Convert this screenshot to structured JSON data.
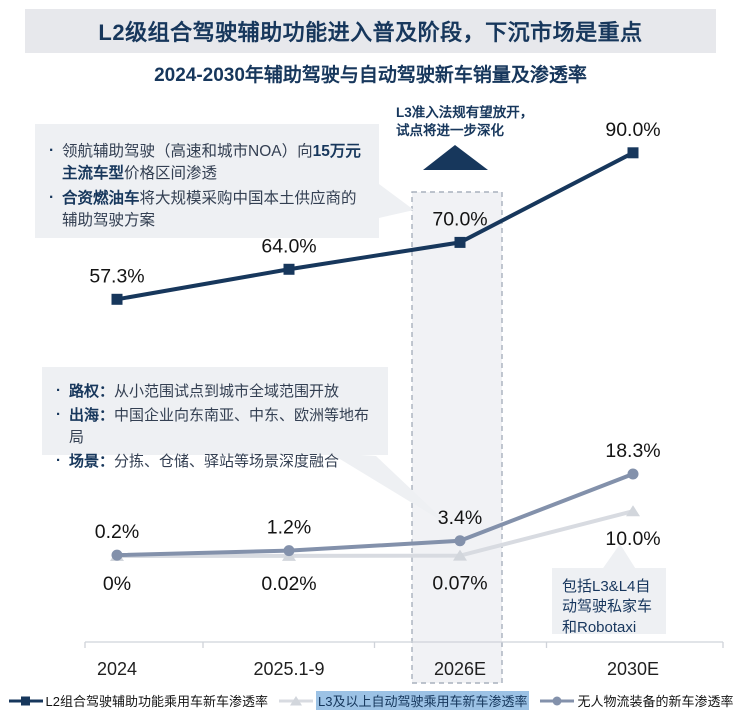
{
  "header": {
    "title": "L2级组合驾驶辅助功能进入普及阶段，下沉市场是重点"
  },
  "chart_title": "2024-2030年辅助驾驶与自动驾驶新车销量及渗透率",
  "annotation_top": {
    "bullets": [
      {
        "pre": "领航辅助驾驶（高速和城市NOA）向",
        "bold": "15万元主流车型",
        "post": "价格区间渗透"
      },
      {
        "pre": "",
        "bold": "合资燃油车",
        "post": "将大规模采购中国本土供应商的辅助驾驶方案"
      }
    ]
  },
  "annotation_mid": {
    "bullets": [
      {
        "label": "路权：",
        "text": "从小范围试点到城市全域范围开放"
      },
      {
        "label": "出海：",
        "text": "中国企业向东南亚、中东、欧洲等地布局"
      },
      {
        "label": "场景：",
        "text": "分拣、仓储、驿站等场景深度融合"
      }
    ]
  },
  "callout_l3": {
    "line1": "L3准入法规有望放开，",
    "line2": "试点将进一步深化"
  },
  "callout_robotaxi": {
    "lines": [
      "包括L3&L4自",
      "动驾驶私家车",
      "和Robotaxi"
    ]
  },
  "legend": {
    "items": [
      {
        "label": "L2组合驾驶辅助功能乘用车新车渗透率",
        "highlighted": false
      },
      {
        "label": "L3及以上自动驾驶乘用车新车渗透率",
        "highlighted": true
      },
      {
        "label": "无人物流装备的新车渗透率",
        "highlighted": false
      }
    ]
  },
  "colors": {
    "navy": "#17375c",
    "gray_blue": "#8391ab",
    "light_gray_line": "#d8dbe1",
    "light_gray_marker": "#d2d6dc",
    "note_bg": "#eef0f3",
    "header_bg": "#e7e8ec",
    "legend_highlight": "#9cc2e5",
    "axis": "#cfd3d9"
  },
  "chart_data": {
    "type": "line",
    "categories": [
      "2024",
      "2025.1-9",
      "2026E",
      "2030E"
    ],
    "unit": "%",
    "ylim": [
      0,
      100
    ],
    "grid": false,
    "legend_position": "bottom",
    "highlighted_category": "2026E",
    "series": [
      {
        "name": "L2组合驾驶辅助功能乘用车新车渗透率",
        "values": [
          57.3,
          64.0,
          70.0,
          90.0
        ],
        "labels": [
          "57.3%",
          "64.0%",
          "70.0%",
          "90.0%"
        ],
        "color": "#17375c",
        "marker": "square",
        "label_position": "above"
      },
      {
        "name": "L3及以上自动驾驶乘用车新车渗透率",
        "values": [
          0,
          0.02,
          0.07,
          10.0
        ],
        "labels": [
          "0%",
          "0.02%",
          "0.07%",
          "10.0%"
        ],
        "color": "#d8dbe1",
        "marker": "triangle",
        "label_position": "below"
      },
      {
        "name": "无人物流装备的新车渗透率",
        "values": [
          0.2,
          1.2,
          3.4,
          18.3
        ],
        "labels": [
          "0.2%",
          "1.2%",
          "3.4%",
          "18.3%"
        ],
        "color": "#8391ab",
        "marker": "circle",
        "label_position": "above"
      }
    ]
  }
}
